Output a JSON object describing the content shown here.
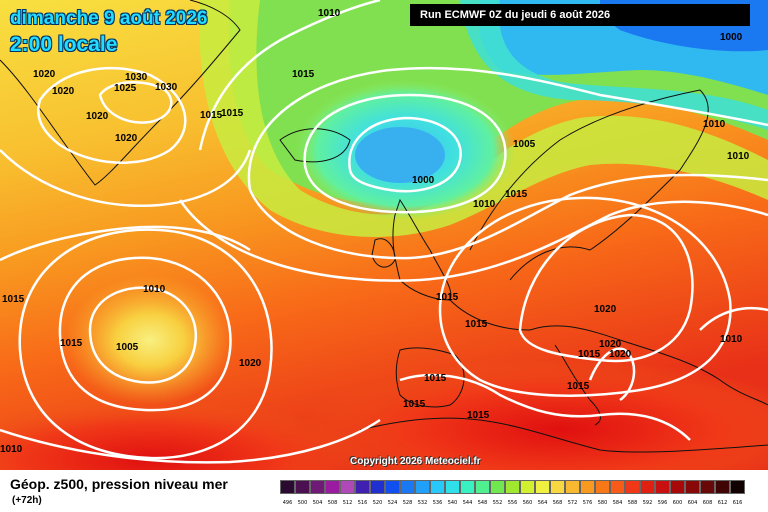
{
  "header": {
    "date_line": "dimanche 9 août 2026",
    "time_line": "2:00 locale",
    "run_info": "Run ECMWF 0Z du jeudi 6 août 2026"
  },
  "copyright": "Copyright 2026 Meteociel.fr",
  "footer": {
    "field": "Géop. z500, pression niveau mer",
    "lead": "(+72h)"
  },
  "scale": [
    {
      "label": "496",
      "color": "#2a0a30"
    },
    {
      "label": "500",
      "color": "#4a1050"
    },
    {
      "label": "504",
      "color": "#701a78"
    },
    {
      "label": "508",
      "color": "#9a1aa0"
    },
    {
      "label": "512",
      "color": "#b048b8"
    },
    {
      "label": "516",
      "color": "#4020b0"
    },
    {
      "label": "520",
      "color": "#2030d0"
    },
    {
      "label": "524",
      "color": "#1050f0"
    },
    {
      "label": "528",
      "color": "#1a78f5"
    },
    {
      "label": "532",
      "color": "#20a0f8"
    },
    {
      "label": "536",
      "color": "#28c8f8"
    },
    {
      "label": "540",
      "color": "#30e0e8"
    },
    {
      "label": "544",
      "color": "#38f0c0"
    },
    {
      "label": "548",
      "color": "#50f090"
    },
    {
      "label": "552",
      "color": "#70e850"
    },
    {
      "label": "556",
      "color": "#a0e830"
    },
    {
      "label": "560",
      "color": "#d0f030"
    },
    {
      "label": "564",
      "color": "#f0f040"
    },
    {
      "label": "568",
      "color": "#f8d840"
    },
    {
      "label": "572",
      "color": "#f8b830"
    },
    {
      "label": "576",
      "color": "#f89a20"
    },
    {
      "label": "580",
      "color": "#f87818"
    },
    {
      "label": "584",
      "color": "#f85a18"
    },
    {
      "label": "588",
      "color": "#f03818"
    },
    {
      "label": "592",
      "color": "#e02010"
    },
    {
      "label": "596",
      "color": "#c81010"
    },
    {
      "label": "600",
      "color": "#a80808"
    },
    {
      "label": "604",
      "color": "#880808"
    },
    {
      "label": "608",
      "color": "#680808"
    },
    {
      "label": "612",
      "color": "#400404"
    },
    {
      "label": "616",
      "color": "#100000"
    }
  ],
  "pressure_labels": [
    {
      "text": "1010"
    },
    {
      "text": "1020"
    },
    {
      "text": "1020"
    },
    {
      "text": "1030"
    },
    {
      "text": "1025"
    },
    {
      "text": "1030"
    },
    {
      "text": "1020"
    },
    {
      "text": "1020"
    },
    {
      "text": "1015"
    },
    {
      "text": "1015"
    },
    {
      "text": "1015"
    },
    {
      "text": "1000"
    },
    {
      "text": "1005"
    },
    {
      "text": "1015"
    },
    {
      "text": "1010"
    },
    {
      "text": "1010"
    },
    {
      "text": "1010"
    },
    {
      "text": "1000"
    },
    {
      "text": "1015"
    },
    {
      "text": "1010"
    },
    {
      "text": "1005"
    },
    {
      "text": "1015"
    },
    {
      "text": "1015"
    },
    {
      "text": "1020"
    },
    {
      "text": "1015"
    },
    {
      "text": "1020"
    },
    {
      "text": "1015"
    },
    {
      "text": "1020"
    },
    {
      "text": "1010"
    },
    {
      "text": "1015"
    },
    {
      "text": "1015"
    },
    {
      "text": "1015"
    },
    {
      "text": "1015"
    },
    {
      "text": "1020"
    },
    {
      "text": "1010"
    }
  ]
}
